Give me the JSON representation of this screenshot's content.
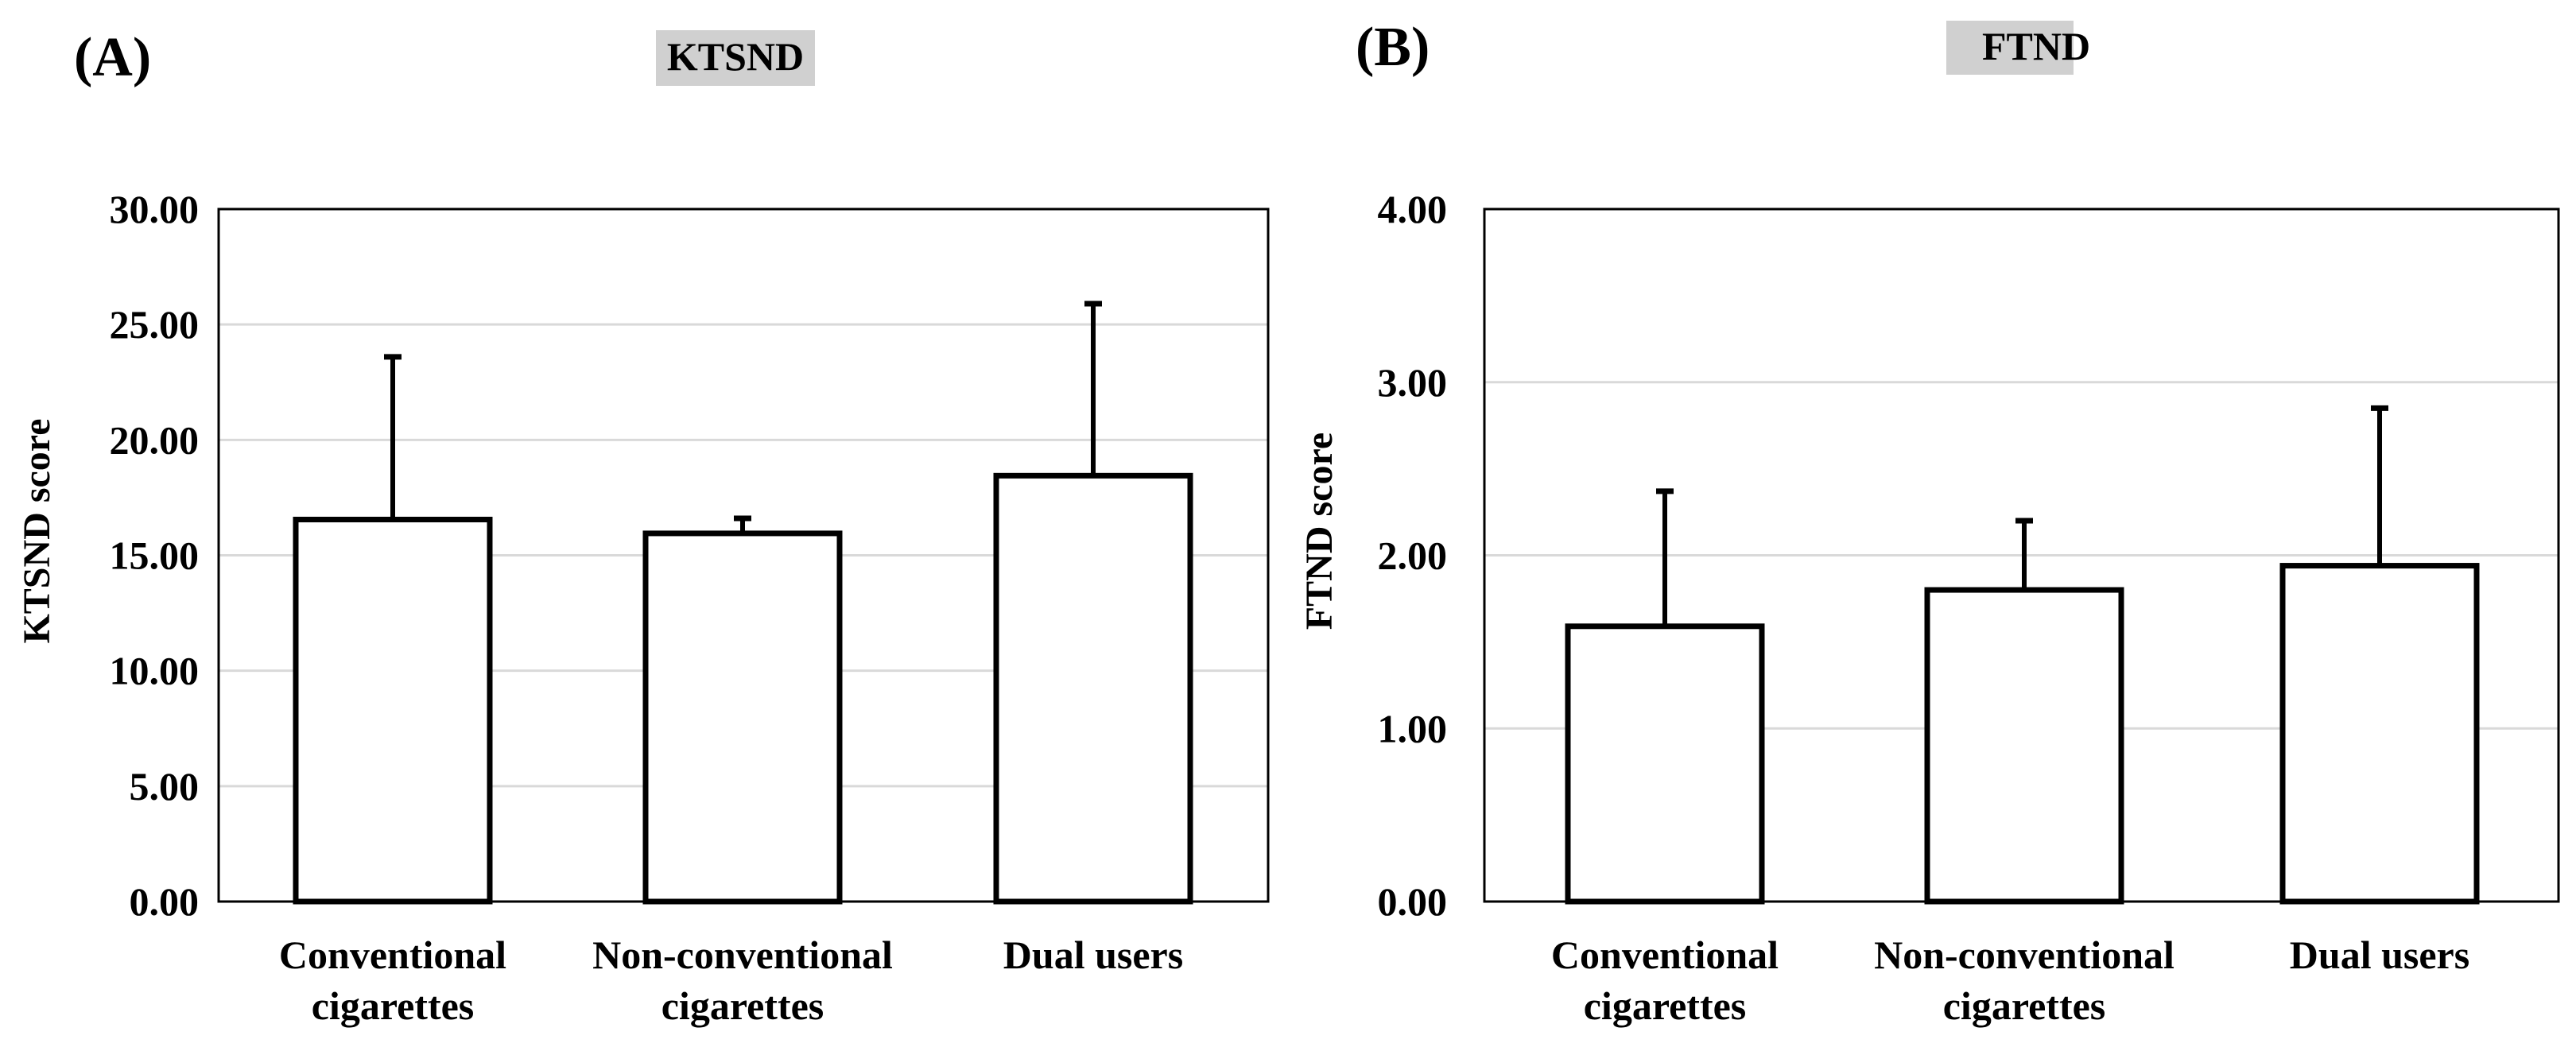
{
  "chart_data": [
    {
      "type": "bar",
      "panel_label": "(A)",
      "title": "KTSND",
      "ylabel": "KTSND score",
      "xlabel": "",
      "ylim": [
        0,
        30
      ],
      "yticks": [
        "0.00",
        "5.00",
        "10.00",
        "15.00",
        "20.00",
        "25.00",
        "30.00"
      ],
      "ytick_values": [
        0,
        5,
        10,
        15,
        20,
        25,
        30
      ],
      "grid": true,
      "categories": [
        [
          "Conventional",
          "cigarettes"
        ],
        [
          "Non-conventional",
          "cigarettes"
        ],
        [
          "Dual users"
        ]
      ],
      "values": [
        16.55,
        15.95,
        18.45
      ],
      "error_upper": [
        23.6,
        16.6,
        25.9
      ]
    },
    {
      "type": "bar",
      "panel_label": "(B)",
      "title": "FTND",
      "ylabel": "FTND score",
      "xlabel": "",
      "ylim": [
        0,
        4
      ],
      "yticks": [
        "0.00",
        "1.00",
        "2.00",
        "3.00",
        "4.00"
      ],
      "ytick_values": [
        0,
        1,
        2,
        3,
        4
      ],
      "grid": true,
      "categories": [
        [
          "Conventional",
          "cigarettes"
        ],
        [
          "Non-conventional",
          "cigarettes"
        ],
        [
          "Dual users"
        ]
      ],
      "values": [
        1.59,
        1.8,
        1.94
      ],
      "error_upper": [
        2.37,
        2.2,
        2.85
      ]
    }
  ],
  "colors": {
    "bar_fill": "#ffffff",
    "stroke": "#000000",
    "grid": "#d9d9d9",
    "title_highlight": "#d0d0d0"
  }
}
